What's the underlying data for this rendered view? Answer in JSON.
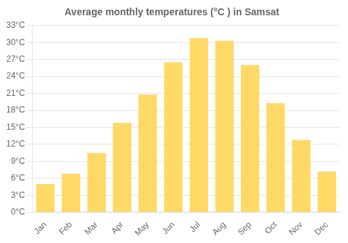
{
  "chart_data": {
    "type": "bar",
    "title": "Average monthly temperatures (°C ) in Samsat",
    "categories": [
      "Jan",
      "Feb",
      "Mar",
      "Apr",
      "May",
      "Jun",
      "Jul",
      "Aug",
      "Sep",
      "Oct",
      "Nov",
      "Dec"
    ],
    "values": [
      5.0,
      6.8,
      10.5,
      15.8,
      20.8,
      26.5,
      30.8,
      30.3,
      26.0,
      19.3,
      12.8,
      7.2
    ],
    "color": "#FFD966",
    "ylim": [
      0,
      33
    ],
    "yticks": [
      {
        "value": 0,
        "label": "0°C"
      },
      {
        "value": 3,
        "label": "3°C"
      },
      {
        "value": 6,
        "label": "6°C"
      },
      {
        "value": 9,
        "label": "9°C"
      },
      {
        "value": 12,
        "label": "12°C"
      },
      {
        "value": 15,
        "label": "15°C"
      },
      {
        "value": 18,
        "label": "18°C"
      },
      {
        "value": 21,
        "label": "21°C"
      },
      {
        "value": 24,
        "label": "24°C"
      },
      {
        "value": 27,
        "label": "27°C"
      },
      {
        "value": 30,
        "label": "30°C"
      },
      {
        "value": 33,
        "label": "33°C"
      }
    ],
    "grid": true
  }
}
